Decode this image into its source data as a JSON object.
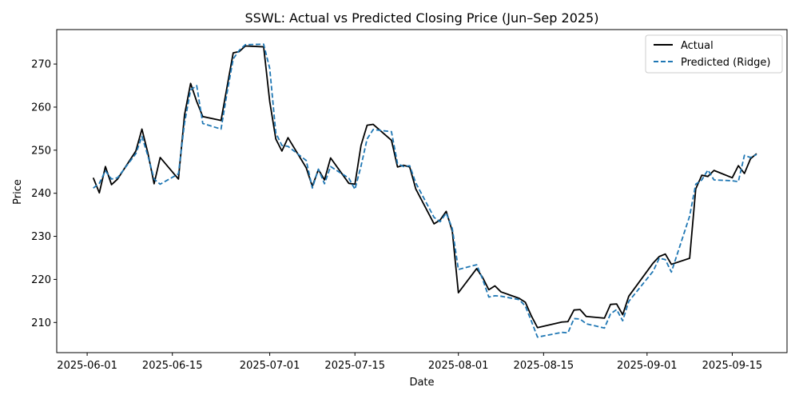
{
  "chart_data": {
    "type": "line",
    "title": "SSWL: Actual vs Predicted Closing Price (Jun–Sep 2025)",
    "xlabel": "Date",
    "ylabel": "Price",
    "xlim": [
      "2025-05-27",
      "2025-09-24"
    ],
    "ylim": [
      203,
      278
    ],
    "x_ticks": [
      "2025-06-01",
      "2025-06-15",
      "2025-07-01",
      "2025-07-15",
      "2025-08-01",
      "2025-08-15",
      "2025-09-01",
      "2025-09-15"
    ],
    "y_ticks": [
      210,
      220,
      230,
      240,
      250,
      260,
      270
    ],
    "grid": false,
    "legend_position": "top-right",
    "colors": {
      "actual": "#000000",
      "predicted": "#1f77b4"
    },
    "series": [
      {
        "name": "Actual",
        "style": "solid",
        "points": [
          [
            "2025-06-02",
            243.6
          ],
          [
            "2025-06-03",
            240.1
          ],
          [
            "2025-06-04",
            246.2
          ],
          [
            "2025-06-05",
            242.0
          ],
          [
            "2025-06-06",
            243.3
          ],
          [
            "2025-06-09",
            249.8
          ],
          [
            "2025-06-10",
            254.9
          ],
          [
            "2025-06-11",
            249.2
          ],
          [
            "2025-06-12",
            242.2
          ],
          [
            "2025-06-13",
            248.3
          ],
          [
            "2025-06-16",
            243.3
          ],
          [
            "2025-06-17",
            258.2
          ],
          [
            "2025-06-18",
            265.5
          ],
          [
            "2025-06-19",
            261.3
          ],
          [
            "2025-06-20",
            257.8
          ],
          [
            "2025-06-23",
            256.9
          ],
          [
            "2025-06-24",
            264.8
          ],
          [
            "2025-06-25",
            272.6
          ],
          [
            "2025-06-26",
            272.9
          ],
          [
            "2025-06-27",
            274.2
          ],
          [
            "2025-06-30",
            274.0
          ],
          [
            "2025-07-01",
            261.3
          ],
          [
            "2025-07-02",
            252.6
          ],
          [
            "2025-07-03",
            249.8
          ],
          [
            "2025-07-04",
            252.9
          ],
          [
            "2025-07-07",
            245.9
          ],
          [
            "2025-07-08",
            241.6
          ],
          [
            "2025-07-09",
            245.5
          ],
          [
            "2025-07-10",
            243.1
          ],
          [
            "2025-07-11",
            248.2
          ],
          [
            "2025-07-14",
            242.3
          ],
          [
            "2025-07-15",
            242.1
          ],
          [
            "2025-07-16",
            251.1
          ],
          [
            "2025-07-17",
            255.8
          ],
          [
            "2025-07-18",
            256.0
          ],
          [
            "2025-07-21",
            252.3
          ],
          [
            "2025-07-22",
            246.1
          ],
          [
            "2025-07-23",
            246.5
          ],
          [
            "2025-07-24",
            246.1
          ],
          [
            "2025-07-25",
            241.0
          ],
          [
            "2025-07-28",
            232.9
          ],
          [
            "2025-07-29",
            233.8
          ],
          [
            "2025-07-30",
            235.8
          ],
          [
            "2025-07-31",
            231.2
          ],
          [
            "2025-08-01",
            216.9
          ],
          [
            "2025-08-04",
            222.5
          ],
          [
            "2025-08-05",
            220.4
          ],
          [
            "2025-08-06",
            217.6
          ],
          [
            "2025-08-07",
            218.5
          ],
          [
            "2025-08-08",
            217.1
          ],
          [
            "2025-08-11",
            215.6
          ],
          [
            "2025-08-12",
            214.7
          ],
          [
            "2025-08-13",
            211.5
          ],
          [
            "2025-08-14",
            208.8
          ],
          [
            "2025-08-18",
            210.1
          ],
          [
            "2025-08-19",
            210.2
          ],
          [
            "2025-08-20",
            212.9
          ],
          [
            "2025-08-21",
            213.0
          ],
          [
            "2025-08-22",
            211.4
          ],
          [
            "2025-08-25",
            211.0
          ],
          [
            "2025-08-26",
            214.2
          ],
          [
            "2025-08-27",
            214.3
          ],
          [
            "2025-08-28",
            211.8
          ],
          [
            "2025-08-29",
            216.1
          ],
          [
            "2025-09-02",
            223.8
          ],
          [
            "2025-09-03",
            225.3
          ],
          [
            "2025-09-04",
            225.9
          ],
          [
            "2025-09-05",
            223.5
          ],
          [
            "2025-09-08",
            224.9
          ],
          [
            "2025-09-09",
            241.0
          ],
          [
            "2025-09-10",
            244.2
          ],
          [
            "2025-09-11",
            243.9
          ],
          [
            "2025-09-12",
            245.3
          ],
          [
            "2025-09-15",
            243.6
          ],
          [
            "2025-09-16",
            246.4
          ],
          [
            "2025-09-17",
            244.6
          ],
          [
            "2025-09-18",
            248.0
          ],
          [
            "2025-09-19",
            249.2
          ]
        ]
      },
      {
        "name": "Predicted (Ridge)",
        "style": "dashed",
        "points": [
          [
            "2025-06-02",
            241.2
          ],
          [
            "2025-06-03",
            242.3
          ],
          [
            "2025-06-04",
            245.2
          ],
          [
            "2025-06-05",
            243.3
          ],
          [
            "2025-06-06",
            243.6
          ],
          [
            "2025-06-09",
            249.2
          ],
          [
            "2025-06-10",
            253.2
          ],
          [
            "2025-06-11",
            248.6
          ],
          [
            "2025-06-12",
            243.3
          ],
          [
            "2025-06-13",
            242.1
          ],
          [
            "2025-06-16",
            244.5
          ],
          [
            "2025-06-17",
            256.3
          ],
          [
            "2025-06-18",
            264.0
          ],
          [
            "2025-06-19",
            265.0
          ],
          [
            "2025-06-20",
            256.2
          ],
          [
            "2025-06-23",
            254.9
          ],
          [
            "2025-06-24",
            263.4
          ],
          [
            "2025-06-25",
            271.2
          ],
          [
            "2025-06-26",
            273.2
          ],
          [
            "2025-06-27",
            274.5
          ],
          [
            "2025-06-30",
            274.6
          ],
          [
            "2025-07-01",
            269.0
          ],
          [
            "2025-07-02",
            254.0
          ],
          [
            "2025-07-03",
            251.1
          ],
          [
            "2025-07-04",
            250.9
          ],
          [
            "2025-07-07",
            247.6
          ],
          [
            "2025-07-08",
            241.2
          ],
          [
            "2025-07-09",
            245.6
          ],
          [
            "2025-07-10",
            242.2
          ],
          [
            "2025-07-11",
            246.2
          ],
          [
            "2025-07-14",
            243.5
          ],
          [
            "2025-07-15",
            240.9
          ],
          [
            "2025-07-16",
            246.3
          ],
          [
            "2025-07-17",
            252.6
          ],
          [
            "2025-07-18",
            254.8
          ],
          [
            "2025-07-21",
            254.3
          ],
          [
            "2025-07-22",
            246.9
          ],
          [
            "2025-07-23",
            246.2
          ],
          [
            "2025-07-24",
            246.4
          ],
          [
            "2025-07-25",
            242.4
          ],
          [
            "2025-07-28",
            234.4
          ],
          [
            "2025-07-29",
            233.4
          ],
          [
            "2025-07-30",
            235.4
          ],
          [
            "2025-07-31",
            231.8
          ],
          [
            "2025-08-01",
            222.3
          ],
          [
            "2025-08-04",
            223.4
          ],
          [
            "2025-08-05",
            220.0
          ],
          [
            "2025-08-06",
            215.9
          ],
          [
            "2025-08-07",
            216.2
          ],
          [
            "2025-08-08",
            216.1
          ],
          [
            "2025-08-11",
            215.3
          ],
          [
            "2025-08-12",
            213.8
          ],
          [
            "2025-08-13",
            210.3
          ],
          [
            "2025-08-14",
            206.6
          ],
          [
            "2025-08-18",
            207.7
          ],
          [
            "2025-08-19",
            207.6
          ],
          [
            "2025-08-20",
            210.9
          ],
          [
            "2025-08-21",
            210.8
          ],
          [
            "2025-08-22",
            209.7
          ],
          [
            "2025-08-25",
            208.7
          ],
          [
            "2025-08-26",
            212.0
          ],
          [
            "2025-08-27",
            213.0
          ],
          [
            "2025-08-28",
            210.4
          ],
          [
            "2025-08-29",
            214.9
          ],
          [
            "2025-09-02",
            221.9
          ],
          [
            "2025-09-03",
            224.9
          ],
          [
            "2025-09-04",
            224.6
          ],
          [
            "2025-09-05",
            221.7
          ],
          [
            "2025-09-08",
            234.7
          ],
          [
            "2025-09-09",
            242.1
          ],
          [
            "2025-09-10",
            243.1
          ],
          [
            "2025-09-11",
            245.4
          ],
          [
            "2025-09-12",
            243.1
          ],
          [
            "2025-09-15",
            242.9
          ],
          [
            "2025-09-16",
            242.7
          ],
          [
            "2025-09-17",
            248.8
          ],
          [
            "2025-09-18",
            248.3
          ],
          [
            "2025-09-19",
            249.0
          ]
        ]
      }
    ]
  }
}
